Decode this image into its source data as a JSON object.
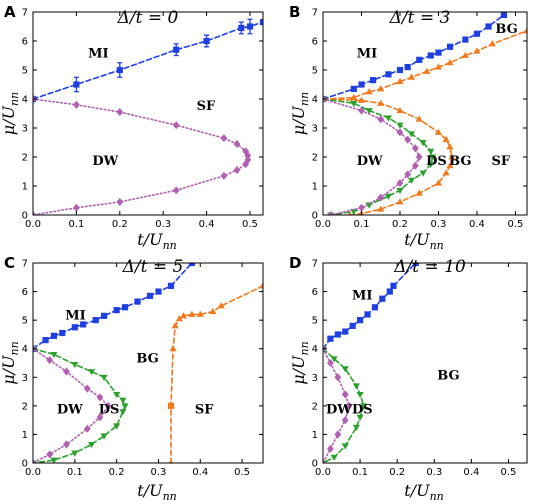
{
  "chart_data": [
    {
      "type": "line",
      "panel_label": "A",
      "title": "Δ/t = 0",
      "xlabel": "t/U",
      "xlabel_sub": "nn",
      "ylabel": "μ/U",
      "ylabel_sub": "nn",
      "xlim": [
        0,
        0.53
      ],
      "ylim": [
        0,
        7
      ],
      "xticks": [
        0.0,
        0.1,
        0.2,
        0.3,
        0.4,
        0.5
      ],
      "xtick_labels": [
        "0.0",
        "0.1",
        "0.2",
        "0.3",
        "0.4",
        "0.5"
      ],
      "yticks": [
        0,
        1,
        2,
        3,
        4,
        5,
        6,
        7
      ],
      "ytick_labels": [
        "0",
        "1",
        "2",
        "3",
        "4",
        "5",
        "6",
        "7"
      ],
      "region_labels": [
        {
          "text": "MI",
          "x": 0.12,
          "y": 5.6
        },
        {
          "text": "SF",
          "x": 0.37,
          "y": 3.8
        },
        {
          "text": "DW",
          "x": 0.13,
          "y": 1.9
        }
      ],
      "series": [
        {
          "color": "#1f3fe0",
          "style": "dashed",
          "marker": "square",
          "x": [
            0.0,
            0.1,
            0.2,
            0.33,
            0.4,
            0.48,
            0.5,
            0.53
          ],
          "y": [
            4.0,
            4.5,
            5.0,
            5.7,
            6.0,
            6.45,
            6.5,
            6.65
          ],
          "err": [
            0,
            0.25,
            0.25,
            0.2,
            0.2,
            0.2,
            0.25,
            0
          ]
        },
        {
          "color": "#b060b0",
          "style": "dotted",
          "marker": "diamond",
          "x": [
            0.0,
            0.1,
            0.2,
            0.33,
            0.44,
            0.47,
            0.49,
            0.495,
            0.495,
            0.49,
            0.47,
            0.44,
            0.33,
            0.2,
            0.1,
            0.0
          ],
          "y": [
            4.0,
            3.8,
            3.55,
            3.1,
            2.65,
            2.45,
            2.2,
            2.05,
            1.9,
            1.75,
            1.55,
            1.35,
            0.85,
            0.45,
            0.25,
            0.0
          ]
        }
      ]
    },
    {
      "type": "line",
      "panel_label": "B",
      "title": "Δ/t = 3",
      "xlabel": "t/U",
      "xlabel_sub": "nn",
      "ylabel": "μ/U",
      "ylabel_sub": "nn",
      "xlim": [
        0,
        0.53
      ],
      "ylim": [
        0,
        7
      ],
      "xticks": [
        0.0,
        0.1,
        0.2,
        0.3,
        0.4,
        0.5
      ],
      "xtick_labels": [
        "0.0",
        "0.1",
        "0.2",
        "0.3",
        "0.4",
        "0.5"
      ],
      "yticks": [
        0,
        1,
        2,
        3,
        4,
        5,
        6,
        7
      ],
      "ytick_labels": [
        "0",
        "1",
        "2",
        "3",
        "4",
        "5",
        "6",
        "7"
      ],
      "region_labels": [
        {
          "text": "MI",
          "x": 0.08,
          "y": 5.6
        },
        {
          "text": "BG",
          "x": 0.44,
          "y": 6.45
        },
        {
          "text": "DW",
          "x": 0.08,
          "y": 1.9
        },
        {
          "text": "DS",
          "x": 0.26,
          "y": 1.9
        },
        {
          "text": "BG",
          "x": 0.32,
          "y": 1.9
        },
        {
          "text": "SF",
          "x": 0.43,
          "y": 1.9
        }
      ],
      "series": [
        {
          "color": "#1f3fe0",
          "style": "dashed",
          "marker": "square",
          "x": [
            0.0,
            0.08,
            0.1,
            0.13,
            0.17,
            0.2,
            0.22,
            0.25,
            0.28,
            0.3,
            0.33,
            0.37,
            0.4,
            0.43,
            0.47
          ],
          "y": [
            4.0,
            4.35,
            4.5,
            4.65,
            4.85,
            5.0,
            5.1,
            5.35,
            5.5,
            5.6,
            5.8,
            6.05,
            6.25,
            6.5,
            6.9
          ]
        },
        {
          "color": "#f07a20",
          "style": "dashed",
          "marker": "triangle",
          "x": [
            0.0,
            0.08,
            0.12,
            0.15,
            0.2,
            0.23,
            0.27,
            0.3,
            0.33,
            0.37,
            0.4,
            0.44,
            0.53
          ],
          "y": [
            4.0,
            4.05,
            4.25,
            4.35,
            4.6,
            4.75,
            4.95,
            5.1,
            5.25,
            5.5,
            5.65,
            5.9,
            6.35
          ]
        },
        {
          "color": "#f07a20",
          "style": "dashed",
          "marker": "triangle",
          "x": [
            0.0,
            0.1,
            0.15,
            0.2,
            0.25,
            0.3,
            0.32,
            0.33,
            0.335,
            0.33,
            0.32,
            0.3,
            0.25,
            0.2,
            0.15,
            0.1,
            0.07
          ],
          "y": [
            4.0,
            3.95,
            3.85,
            3.6,
            3.3,
            2.85,
            2.6,
            2.35,
            2.0,
            1.7,
            1.45,
            1.1,
            0.75,
            0.45,
            0.2,
            0.05,
            0.0
          ]
        },
        {
          "color": "#2ea02e",
          "style": "dashed",
          "marker": "triangle-down",
          "x": [
            0.0,
            0.08,
            0.12,
            0.17,
            0.2,
            0.23,
            0.26,
            0.28,
            0.285,
            0.28,
            0.26,
            0.23,
            0.2,
            0.17,
            0.12,
            0.08,
            0.02
          ],
          "y": [
            4.0,
            3.85,
            3.6,
            3.35,
            3.1,
            2.8,
            2.5,
            2.2,
            2.0,
            1.75,
            1.45,
            1.2,
            0.85,
            0.65,
            0.35,
            0.12,
            0.0
          ]
        },
        {
          "color": "#b060b0",
          "style": "dotted",
          "marker": "diamond",
          "x": [
            0.0,
            0.1,
            0.15,
            0.2,
            0.22,
            0.24,
            0.25,
            0.24,
            0.22,
            0.2,
            0.15,
            0.1,
            0.02
          ],
          "y": [
            4.0,
            3.6,
            3.3,
            2.85,
            2.6,
            2.3,
            2.0,
            1.7,
            1.4,
            1.1,
            0.6,
            0.25,
            0.0
          ]
        }
      ]
    },
    {
      "type": "line",
      "panel_label": "C",
      "title": "Δ/t = 5",
      "xlabel": "t/U",
      "xlabel_sub": "nn",
      "ylabel": "μ/U",
      "ylabel_sub": "nn",
      "xlim": [
        0,
        0.55
      ],
      "ylim": [
        0,
        7
      ],
      "xticks": [
        0.0,
        0.1,
        0.2,
        0.3,
        0.4,
        0.5
      ],
      "xtick_labels": [
        "0.0",
        "0.1",
        "0.2",
        "0.3",
        "0.4",
        "0.5"
      ],
      "yticks": [
        0,
        1,
        2,
        3,
        4,
        5,
        6,
        7
      ],
      "ytick_labels": [
        "0",
        "1",
        "2",
        "3",
        "4",
        "5",
        "6",
        "7"
      ],
      "region_labels": [
        {
          "text": "MI",
          "x": 0.07,
          "y": 5.2
        },
        {
          "text": "BG",
          "x": 0.24,
          "y": 3.7
        },
        {
          "text": "DW",
          "x": 0.05,
          "y": 1.9
        },
        {
          "text": "DS",
          "x": 0.15,
          "y": 1.9
        },
        {
          "text": "SF",
          "x": 0.38,
          "y": 1.9
        }
      ],
      "series": [
        {
          "color": "#1f3fe0",
          "style": "dashed",
          "marker": "square",
          "x": [
            0.0,
            0.03,
            0.05,
            0.07,
            0.1,
            0.12,
            0.15,
            0.17,
            0.2,
            0.22,
            0.25,
            0.28,
            0.3,
            0.33,
            0.38
          ],
          "y": [
            4.0,
            4.3,
            4.45,
            4.55,
            4.75,
            4.85,
            5.0,
            5.15,
            5.35,
            5.45,
            5.65,
            5.85,
            6.0,
            6.2,
            7.0
          ]
        },
        {
          "color": "#f07a20",
          "style": "dashed",
          "marker": "triangle",
          "x": [
            0.33,
            0.33,
            0.335,
            0.34,
            0.35,
            0.36,
            0.38,
            0.4,
            0.43,
            0.45,
            0.55
          ],
          "y": [
            0.0,
            2.0,
            4.0,
            4.8,
            5.05,
            5.15,
            5.2,
            5.2,
            5.3,
            5.5,
            6.2
          ]
        },
        {
          "color": "#f07a20",
          "style": "dashed",
          "marker": "square",
          "x": [
            0.33
          ],
          "y": [
            2.0
          ]
        },
        {
          "color": "#2ea02e",
          "style": "dashed",
          "marker": "triangle-down",
          "x": [
            0.0,
            0.05,
            0.1,
            0.14,
            0.17,
            0.2,
            0.215,
            0.22,
            0.215,
            0.2,
            0.17,
            0.14,
            0.1,
            0.05,
            0.0
          ],
          "y": [
            4.0,
            3.8,
            3.45,
            3.2,
            3.0,
            2.4,
            2.2,
            2.0,
            1.8,
            1.3,
            0.95,
            0.65,
            0.35,
            0.1,
            0.0
          ]
        },
        {
          "color": "#b060b0",
          "style": "dotted",
          "marker": "diamond",
          "x": [
            0.0,
            0.04,
            0.08,
            0.13,
            0.16,
            0.18,
            0.16,
            0.13,
            0.08,
            0.04,
            0.0
          ],
          "y": [
            4.0,
            3.6,
            3.2,
            2.6,
            2.3,
            2.0,
            1.6,
            1.2,
            0.65,
            0.3,
            0.0
          ]
        }
      ]
    },
    {
      "type": "line",
      "panel_label": "D",
      "title": "Δ/t = 10",
      "xlabel": "t/U",
      "xlabel_sub": "nn",
      "ylabel": "μ/U",
      "ylabel_sub": "nn",
      "xlim": [
        0,
        0.55
      ],
      "ylim": [
        0,
        7
      ],
      "xticks": [
        0.0,
        0.1,
        0.2,
        0.3,
        0.4,
        0.5
      ],
      "xtick_labels": [
        "0.0",
        "0.1",
        "0.2",
        "0.3",
        "0.4",
        "0.5"
      ],
      "yticks": [
        0,
        1,
        2,
        3,
        4,
        5,
        6,
        7
      ],
      "ytick_labels": [
        "0",
        "1",
        "2",
        "3",
        "4",
        "5",
        "6",
        "7"
      ],
      "region_labels": [
        {
          "text": "MI",
          "x": 0.07,
          "y": 5.9
        },
        {
          "text": "BG",
          "x": 0.3,
          "y": 3.1
        },
        {
          "text": "DW",
          "x": 0.0,
          "y": 1.9
        },
        {
          "text": "DS",
          "x": 0.07,
          "y": 1.9
        }
      ],
      "series": [
        {
          "color": "#1f3fe0",
          "style": "dashed",
          "marker": "square",
          "x": [
            0.0,
            0.02,
            0.04,
            0.06,
            0.08,
            0.1,
            0.12,
            0.14,
            0.16,
            0.18,
            0.19,
            0.25
          ],
          "y": [
            4.0,
            4.35,
            4.5,
            4.6,
            4.8,
            5.0,
            5.2,
            5.45,
            5.75,
            6.0,
            6.2,
            7.0
          ]
        },
        {
          "color": "#2ea02e",
          "style": "dashed",
          "marker": "triangle-down",
          "x": [
            0.0,
            0.03,
            0.06,
            0.09,
            0.1,
            0.11,
            0.1,
            0.09,
            0.06,
            0.03,
            0.0
          ],
          "y": [
            4.0,
            3.65,
            3.3,
            2.7,
            2.4,
            2.0,
            1.6,
            1.25,
            0.6,
            0.2,
            0.0
          ]
        },
        {
          "color": "#b060b0",
          "style": "dotted",
          "marker": "diamond",
          "x": [
            0.0,
            0.02,
            0.04,
            0.06,
            0.07,
            0.06,
            0.04,
            0.02,
            0.0
          ],
          "y": [
            4.0,
            3.5,
            3.0,
            2.4,
            2.0,
            1.5,
            1.0,
            0.5,
            0.0
          ]
        }
      ]
    }
  ]
}
